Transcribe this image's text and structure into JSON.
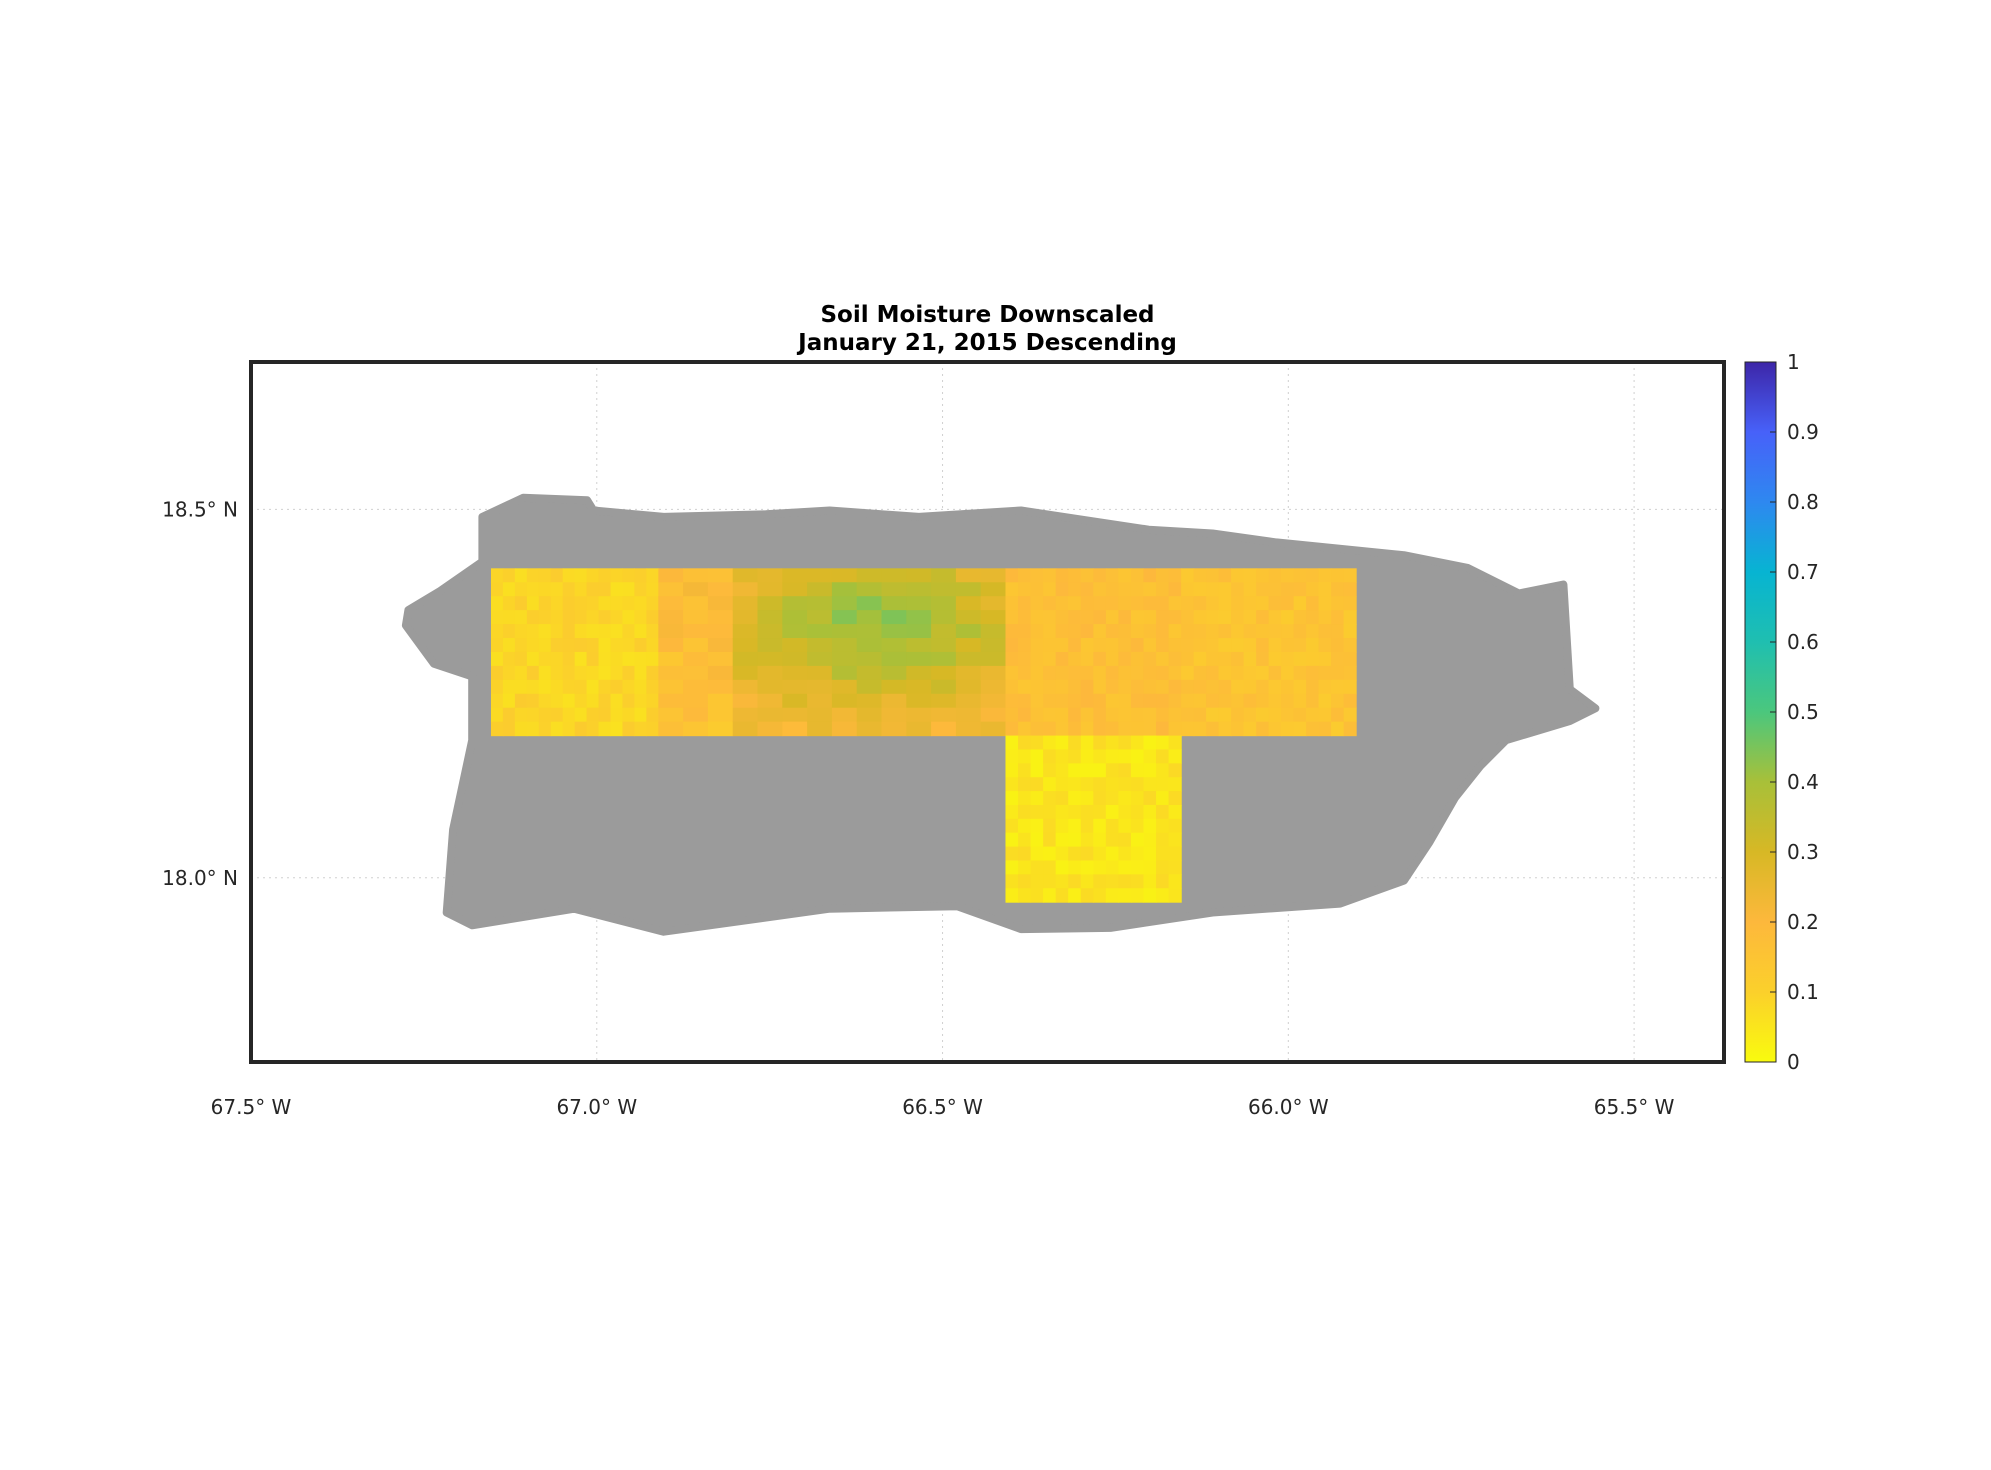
{
  "chart_data": {
    "type": "heatmap",
    "title": [
      "Soil Moisture Downscaled",
      "January 21, 2015 Descending"
    ],
    "xlabel": "",
    "ylabel": "",
    "xlim": [
      -67.5,
      -65.37
    ],
    "ylim": [
      17.75,
      18.7
    ],
    "grid": true,
    "x_ticks": [
      {
        "value": -67.5,
        "label": "67.5° W"
      },
      {
        "value": -67.0,
        "label": "67.0° W"
      },
      {
        "value": -66.5,
        "label": "66.5° W"
      },
      {
        "value": -66.0,
        "label": "66.0° W"
      },
      {
        "value": -65.5,
        "label": "65.5° W"
      }
    ],
    "y_ticks": [
      {
        "value": 18.5,
        "label": "18.5° N"
      },
      {
        "value": 18.0,
        "label": "18.0° N"
      }
    ],
    "colorbar": {
      "range": [
        0,
        1
      ],
      "ticks": [
        "0",
        "0.1",
        "0.2",
        "0.3",
        "0.4",
        "0.5",
        "0.6",
        "0.7",
        "0.8",
        "0.9",
        "1"
      ],
      "colors": [
        "#f9fb0e",
        "#fbd02b",
        "#fdb83c",
        "#d7b825",
        "#a8c039",
        "#4bc77d",
        "#1fbfb0",
        "#07b4d2",
        "#2e88f0",
        "#4761f9",
        "#3d26a8"
      ],
      "position": "right"
    },
    "land_no_data_color": "#9b9b9b",
    "tiles": [
      {
        "lon": [
          -67.153,
          -66.911
        ],
        "lat": [
          18.193,
          18.42
        ],
        "mean_value": 0.09
      },
      {
        "lon": [
          -66.911,
          -66.409
        ],
        "lat": [
          18.193,
          18.42
        ],
        "mean_value": 0.25
      },
      {
        "lon": [
          -66.409,
          -66.155
        ],
        "lat": [
          18.193,
          18.42
        ],
        "mean_value": 0.17
      },
      {
        "lon": [
          -66.155,
          -65.902
        ],
        "lat": [
          18.193,
          18.42
        ],
        "mean_value": 0.15
      },
      {
        "lon": [
          -66.409,
          -66.155
        ],
        "lat": [
          17.967,
          18.193
        ],
        "mean_value": 0.05
      }
    ]
  }
}
